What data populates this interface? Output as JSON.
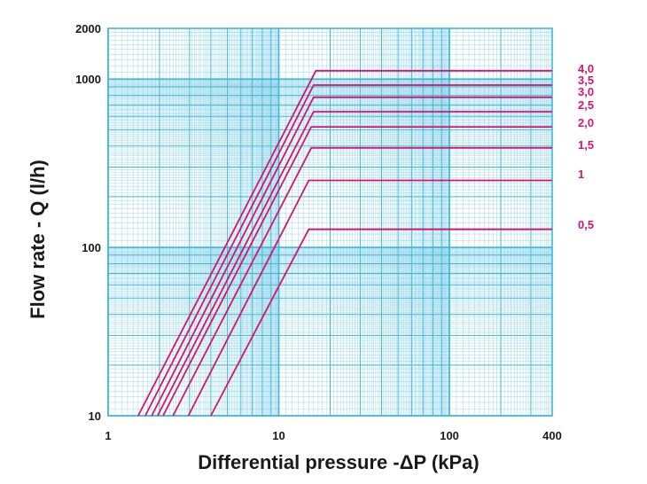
{
  "chart_data": {
    "type": "line",
    "title": "",
    "xlabel": "Differential pressure -ΔP (kPa)",
    "ylabel": "Flow rate - Q (l/h)",
    "x_scale": "log",
    "y_scale": "log",
    "xlim": [
      1,
      400
    ],
    "ylim": [
      10,
      2000
    ],
    "x_tick_labels": [
      {
        "value": 1,
        "label": "1"
      },
      {
        "value": 10,
        "label": "10"
      },
      {
        "value": 100,
        "label": "100"
      },
      {
        "value": 400,
        "label": "400"
      }
    ],
    "y_tick_labels": [
      {
        "value": 10,
        "label": "10"
      },
      {
        "value": 100,
        "label": "100"
      },
      {
        "value": 1000,
        "label": "1000"
      },
      {
        "value": 2000,
        "label": "2000"
      }
    ],
    "grid": true,
    "colors": {
      "grid": "#3fb6d8",
      "series": "#d6136f",
      "text": "#1a1a1a"
    },
    "series": [
      {
        "name": "0,5",
        "x": [
          4,
          15,
          400
        ],
        "y": [
          10,
          128,
          128
        ]
      },
      {
        "name": "1",
        "x": [
          2.95,
          15,
          400
        ],
        "y": [
          10,
          250,
          250
        ]
      },
      {
        "name": "1,5",
        "x": [
          2.4,
          15.5,
          400
        ],
        "y": [
          10,
          390,
          390
        ]
      },
      {
        "name": "2,0",
        "x": [
          2.1,
          15.5,
          400
        ],
        "y": [
          10,
          520,
          520
        ]
      },
      {
        "name": "2,5",
        "x": [
          1.95,
          16,
          400
        ],
        "y": [
          10,
          640,
          640
        ]
      },
      {
        "name": "3,0",
        "x": [
          1.8,
          16,
          400
        ],
        "y": [
          10,
          780,
          780
        ]
      },
      {
        "name": "3,5",
        "x": [
          1.65,
          16,
          400
        ],
        "y": [
          10,
          920,
          920
        ]
      },
      {
        "name": "4,0",
        "x": [
          1.5,
          16.5,
          400
        ],
        "y": [
          10,
          1120,
          1120
        ]
      }
    ]
  }
}
